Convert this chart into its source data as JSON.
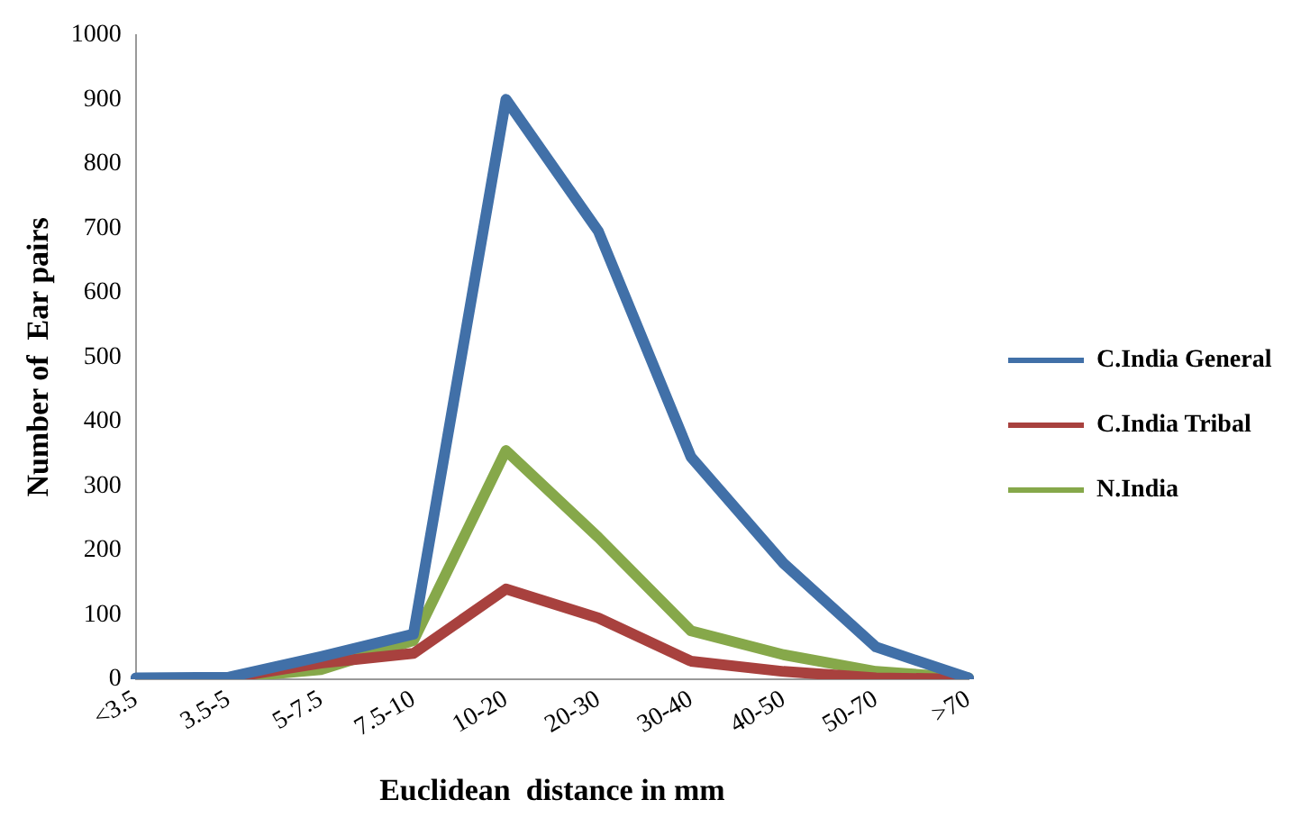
{
  "chart_data": {
    "type": "line",
    "xlabel": "Euclidean  distance in mm",
    "ylabel": "Number of  Ear pairs",
    "categories": [
      "<3.5",
      "3.5-5",
      "5-7.5",
      "7.5-10",
      "10-20",
      "20-30",
      "30-40",
      "40-50",
      "50-70",
      ">70"
    ],
    "series": [
      {
        "name": "C.India General",
        "color": "#4170a8",
        "values": [
          2,
          3,
          35,
          70,
          900,
          695,
          345,
          180,
          50,
          2
        ]
      },
      {
        "name": "C.India Tribal",
        "color": "#a8413e",
        "values": [
          0,
          2,
          25,
          40,
          140,
          95,
          28,
          12,
          2,
          0
        ]
      },
      {
        "name": "N.India",
        "color": "#86a84a",
        "values": [
          0,
          2,
          15,
          60,
          355,
          220,
          75,
          38,
          12,
          2
        ]
      }
    ],
    "ylim": [
      0,
      1000
    ],
    "yticks": [
      0,
      100,
      200,
      300,
      400,
      500,
      600,
      700,
      800,
      900,
      1000
    ],
    "grid": false,
    "legend": "right",
    "marker": "none",
    "line_style": "solid"
  }
}
